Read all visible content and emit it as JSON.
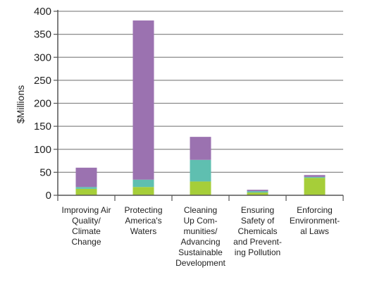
{
  "chart_data": {
    "type": "bar",
    "stacked": true,
    "ylabel": "$Millions",
    "xlabel": "",
    "title": "",
    "ylim": [
      0,
      400
    ],
    "yticks": [
      0,
      50,
      100,
      150,
      200,
      250,
      300,
      350,
      400
    ],
    "grid": true,
    "legend": "none",
    "categories": [
      [
        "Improving Air",
        "Quality/",
        "Climate",
        "Change"
      ],
      [
        "Protecting",
        "America's",
        "Waters"
      ],
      [
        "Cleaning",
        "Up Com-",
        "munities/",
        "Advancing",
        "Sustainable",
        "Development"
      ],
      [
        "Ensuring",
        "Safety of",
        "Chemicals",
        "and Prevent-",
        "ing Pollution"
      ],
      [
        "Enforcing",
        "Environment-",
        "al Laws"
      ]
    ],
    "series": [
      {
        "color": "#a6ce39",
        "values": [
          14,
          18,
          30,
          6,
          38
        ]
      },
      {
        "color": "#5fbfb0",
        "values": [
          4,
          16,
          47,
          3,
          2
        ]
      },
      {
        "color": "#9b72b0",
        "values": [
          42,
          346,
          50,
          3,
          4
        ]
      }
    ],
    "colors": {
      "axis": "#555555",
      "grid": "#8a8a8a"
    }
  }
}
